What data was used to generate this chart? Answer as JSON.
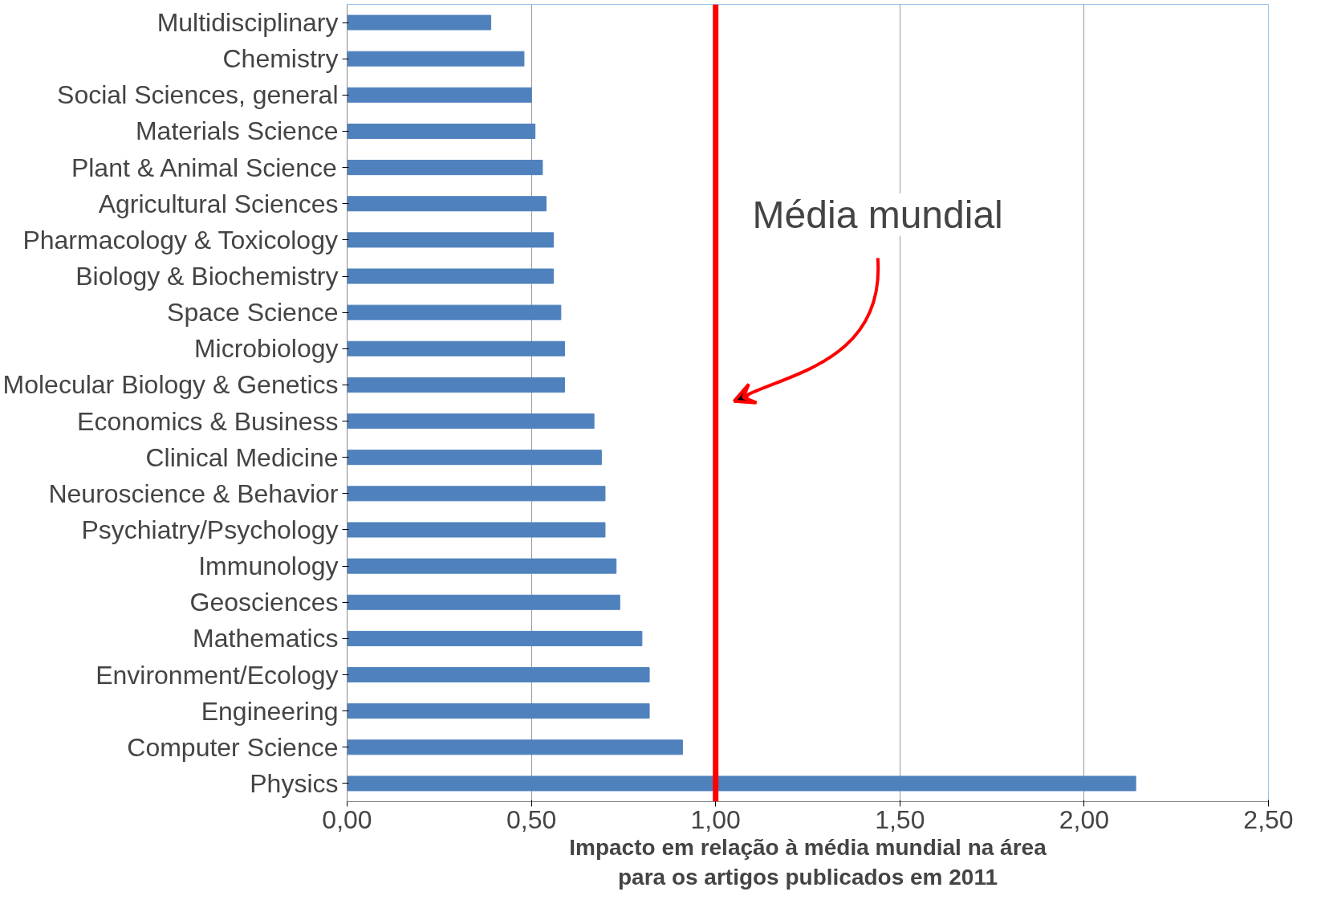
{
  "chart_data": {
    "type": "bar",
    "orientation": "horizontal",
    "xlabel": "Impacto em relação à média mundial na área\npara os artigos publicados em 2011",
    "categories": [
      "Multidisciplinary",
      "Chemistry",
      "Social Sciences, general",
      "Materials Science",
      "Plant & Animal Science",
      "Agricultural Sciences",
      "Pharmacology & Toxicology",
      "Biology & Biochemistry",
      "Space Science",
      "Microbiology",
      "Molecular Biology & Genetics",
      "Economics & Business",
      "Clinical Medicine",
      "Neuroscience & Behavior",
      "Psychiatry/Psychology",
      "Immunology",
      "Geosciences",
      "Mathematics",
      "Environment/Ecology",
      "Engineering",
      "Computer Science",
      "Physics"
    ],
    "values": [
      0.39,
      0.48,
      0.5,
      0.51,
      0.53,
      0.54,
      0.56,
      0.56,
      0.58,
      0.59,
      0.59,
      0.67,
      0.69,
      0.7,
      0.7,
      0.73,
      0.74,
      0.8,
      0.82,
      0.82,
      0.91,
      2.14
    ],
    "color": "#4f81bd",
    "xlim": [
      0,
      2.5
    ],
    "xticks": [
      {
        "value": 0,
        "label": "0,00"
      },
      {
        "value": 0.5,
        "label": "0,50"
      },
      {
        "value": 1,
        "label": "1,00"
      },
      {
        "value": 1.5,
        "label": "1,50"
      },
      {
        "value": 2,
        "label": "2,00"
      },
      {
        "value": 2.5,
        "label": "2,50"
      }
    ],
    "grid": "x",
    "ref_lines": [
      {
        "axis": "x",
        "value": 1,
        "label": "Média mundial",
        "color": "#ff0000"
      }
    ]
  }
}
